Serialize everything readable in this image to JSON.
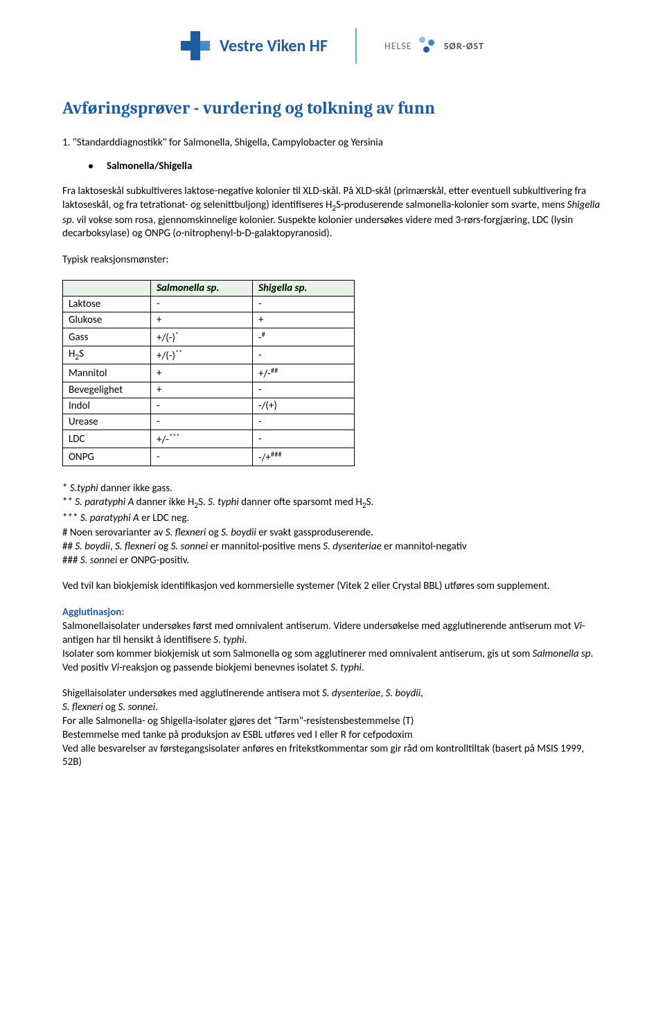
{
  "header": {
    "org_name": "Vestre Viken HF",
    "helse_left": "HELSE",
    "helse_right": "SØR-ØST",
    "dot_colors": [
      "#8fc0e3",
      "#3e87c3",
      "#1d5ca0"
    ]
  },
  "title": "Avføringsprøver - vurdering og tolkning av funn",
  "intro_number": "1.",
  "intro_text": "\"Standarddiagnostikk\" for Salmonella, Shigella, Campylobacter og Yersinia",
  "section_label": "Salmonella/Shigella",
  "para1_a": "Fra laktoseskål subkultiveres laktose-negative kolonier til XLD-skål. På XLD-skål (primærskål, etter eventuell subkultivering fra laktoseskål, og fra tetrationat- og selenittbuljong) identifiseres H",
  "para1_b": "S-produserende salmonella-kolonier som svarte, mens ",
  "para1_c": "Shigella sp",
  "para1_d": ". vil vokse som rosa, gjennomskinnelige kolonier. Suspekte kolonier undersøkes videre med 3-rørs-forgjæring, LDC (lysin decarboksylase) og ONPG (",
  "para1_e": "o",
  "para1_f": "-nitrophenyl-b-D-galaktopyranosid).",
  "typical_label": "Typisk reaksjonsmønster:",
  "table": {
    "columns": [
      "",
      "Salmonella sp.",
      "Shigella sp."
    ],
    "rows": [
      {
        "label": "Laktose",
        "c1": "-",
        "s1": "",
        "c2": "-",
        "s2": ""
      },
      {
        "label": "Glukose",
        "c1": "+",
        "s1": "",
        "c2": "+",
        "s2": ""
      },
      {
        "label": "Gass",
        "c1": "+/(-)",
        "s1": "*",
        "c2": "-",
        "s2": "#"
      },
      {
        "label_html": "H<sub>2</sub>S",
        "label": "H2S",
        "c1": "+/(-)",
        "s1": "**",
        "c2": "-",
        "s2": ""
      },
      {
        "label": "Mannitol",
        "c1": "+",
        "s1": "",
        "c2": "+/-",
        "s2": "##"
      },
      {
        "label": "Bevegelighet",
        "c1": "+",
        "s1": "",
        "c2": "-",
        "s2": ""
      },
      {
        "label": "Indol",
        "c1": "-",
        "s1": "",
        "c2": "-/(+)",
        "s2": ""
      },
      {
        "label": "Urease",
        "c1": "-",
        "s1": "",
        "c2": "-",
        "s2": ""
      },
      {
        "label": "LDC",
        "c1": "+/-",
        "s1": "***",
        "c2": "-",
        "s2": ""
      },
      {
        "label": "ONPG",
        "c1": "-",
        "s1": "",
        "c2": "-/+",
        "s2": "###"
      }
    ]
  },
  "footnotes": {
    "f1_a": "* ",
    "f1_b": "S.typhi",
    "f1_c": " danner ikke gass.",
    "f2_a": "** ",
    "f2_b": "S. paratyphi A",
    "f2_c": " danner ikke H",
    "f2_d": "S. ",
    "f2_e": "S. typhi",
    "f2_f": " danner ofte sparsomt med H",
    "f2_g": "S.",
    "f3_a": "*** ",
    "f3_b": "S. paratyphi A",
    "f3_c": " er LDC neg.",
    "f4_a": "# Noen serovarianter av ",
    "f4_b": "S. flexneri",
    "f4_c": " og ",
    "f4_d": "S. boydii",
    "f4_e": " er svakt gassproduserende.",
    "f5_a": "## ",
    "f5_b": "S. boydii",
    "f5_c": ", ",
    "f5_d": "S. flexneri",
    "f5_e": " og ",
    "f5_f": "S. sonnei",
    "f5_g": " er mannitol-positive mens ",
    "f5_h": "S. dysenteriae",
    "f5_i": " er mannitol-negativ",
    "f6_a": "### ",
    "f6_b": "S. sonnei",
    "f6_c": " er ONPG-positiv."
  },
  "para_vitek": "Ved tvil kan biokjemisk identifikasjon ved kommersielle systemer (Vitek 2 eller Crystal BBL) utføres som supplement.",
  "agglut_heading": "Agglutinasjon:",
  "ag1_a": "Salmonellaisolater undersøkes først med omnivalent antiserum. Videre undersøkelse med agglutinerende antiserum mot ",
  "ag1_b": "Vi",
  "ag1_c": "-antigen har til hensikt å identifisere ",
  "ag1_d": "S. typhi",
  "ag1_e": ".",
  "ag2_a": "Isolater som kommer biokjemisk ut som Salmonella og som agglutinerer med omnivalent antiserum, gis ut som ",
  "ag2_b": "Salmonella sp",
  "ag2_c": ". Ved positiv ",
  "ag2_d": "Vi",
  "ag2_e": "-reaksjon og passende biokjemi benevnes isolatet ",
  "ag2_f": "S. typhi",
  "ag2_g": ".",
  "ag3_a": "Shigellaisolater undersøkes med agglutinerende antisera mot ",
  "ag3_b": "S. dysenteriae",
  "ag3_c": ", ",
  "ag3_d": "S. boydii",
  "ag3_e": ",",
  "ag4_a": "S. flexneri",
  "ag4_b": " og ",
  "ag4_c": "S. sonnei",
  "ag4_d": ".",
  "tail1": "For alle Salmonella- og Shigella-isolater gjøres det \"Tarm\"-resistensbestemmelse (T)",
  "tail2": "Bestemmelse med tanke på produksjon av ESBL utføres ved I eller R for cefpodoxim",
  "tail3": "Ved alle besvarelser av førstegangsisolater anføres en fritekstkommentar som gir råd om kontrolltiltak (basert på MSIS 1999, 52B)"
}
